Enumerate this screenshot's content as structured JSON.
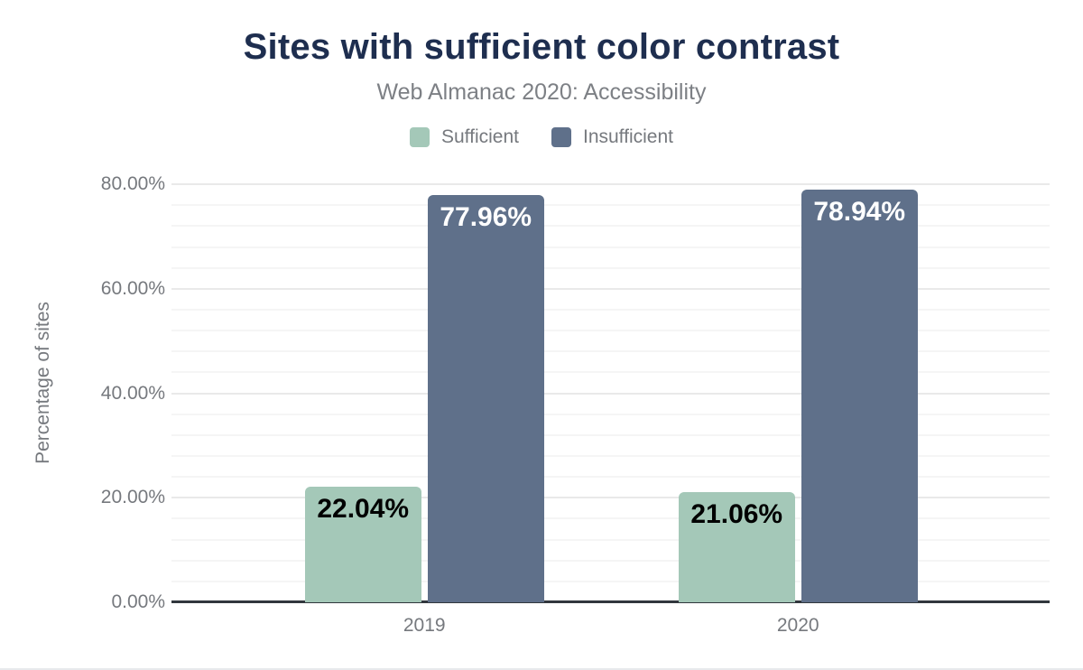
{
  "chart_data": {
    "type": "bar",
    "title": "Sites with sufficient color contrast",
    "subtitle": "Web Almanac 2020: Accessibility",
    "ylabel": "Percentage of sites",
    "categories": [
      "2019",
      "2020"
    ],
    "series": [
      {
        "name": "Sufficient",
        "color": "#a4c8b8",
        "label_color": "#000000",
        "values": [
          22.04,
          21.06
        ],
        "labels": [
          "22.04%",
          "21.06%"
        ]
      },
      {
        "name": "Insufficient",
        "color": "#5f708a",
        "label_color": "#ffffff",
        "values": [
          77.96,
          78.94
        ],
        "labels": [
          "77.96%",
          "78.94%"
        ]
      }
    ],
    "y_axis": {
      "max": 84,
      "minor_step": 4,
      "major_step": 20,
      "ticks": [
        {
          "value": 0,
          "label": "0.00%"
        },
        {
          "value": 20,
          "label": "20.00%"
        },
        {
          "value": 40,
          "label": "40.00%"
        },
        {
          "value": 60,
          "label": "60.00%"
        },
        {
          "value": 80,
          "label": "80.00%"
        }
      ]
    },
    "legend_position": "top",
    "grid": "horizontal major+minor"
  },
  "colors": {
    "background": "#ffffff",
    "title": "#1e2e4f",
    "subtitle": "#7d8085",
    "axis_text": "#76797e",
    "axis_line": "#31373d",
    "grid_major": "#e9e9e9",
    "grid_minor": "#f5f5f5"
  }
}
